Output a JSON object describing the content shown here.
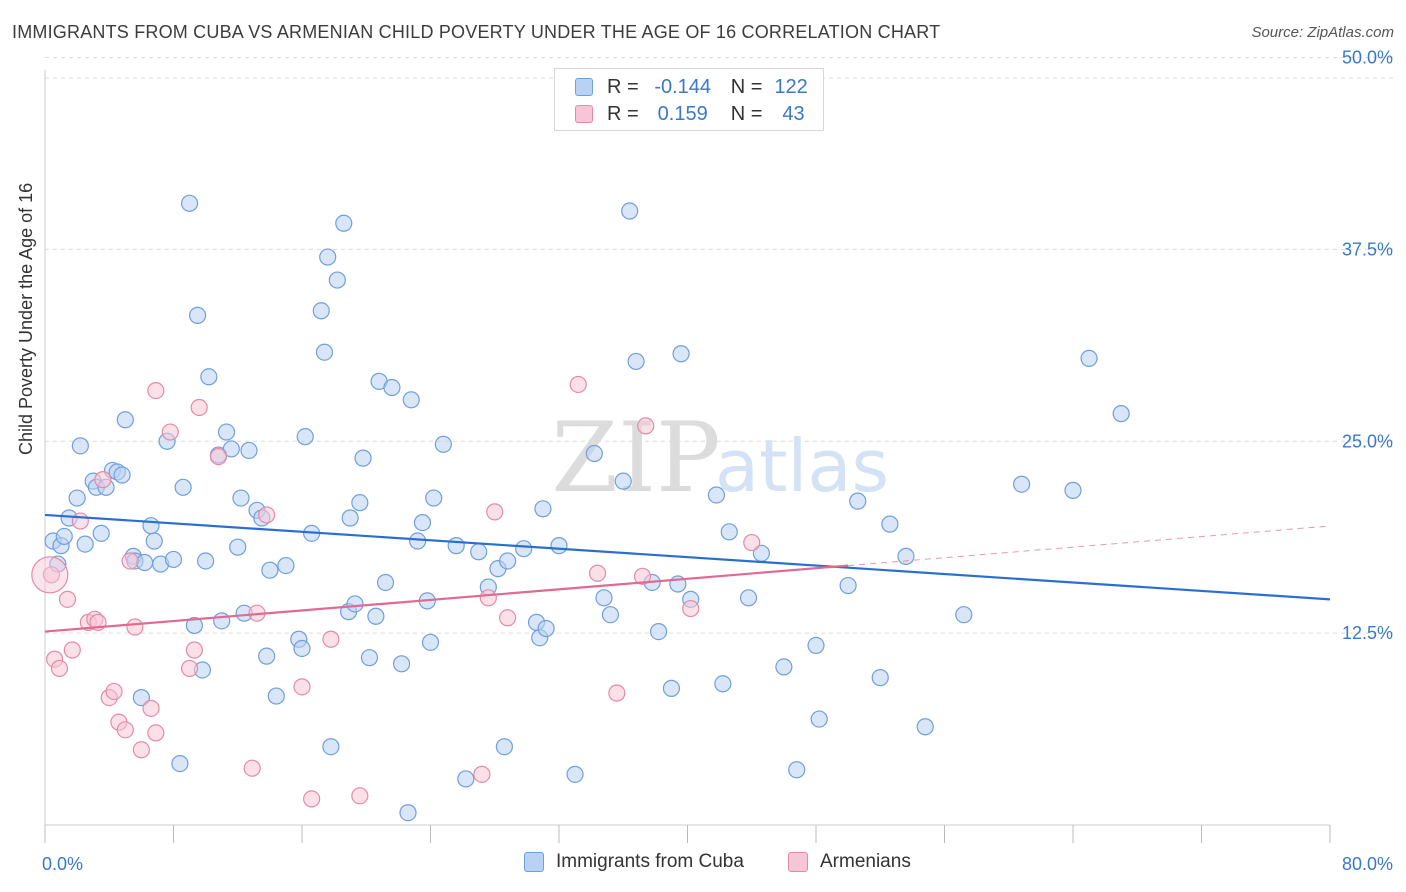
{
  "header": {
    "title": "IMMIGRANTS FROM CUBA VS ARMENIAN CHILD POVERTY UNDER THE AGE OF 16 CORRELATION CHART",
    "source": "Source: ZipAtlas.com"
  },
  "watermark": {
    "text_zip": "ZIP",
    "text_atlas": "atlas"
  },
  "colors": {
    "blue_fill": "#b9d2f3",
    "blue_stroke": "#6f9fdc",
    "blue_line": "#2a6fd0",
    "pink_fill": "#f7c6d6",
    "pink_stroke": "#e38aa9",
    "pink_line": "#e06a93",
    "tick_label": "#3a78c9",
    "grid": "#dcdcdc"
  },
  "legend_top": {
    "rows": [
      {
        "r_label": "R =",
        "r_value": "-0.144",
        "n_label": "N =",
        "n_value": "122"
      },
      {
        "r_label": "R =",
        "r_value": "0.159",
        "n_label": "N =",
        "n_value": "43"
      }
    ]
  },
  "legend_bottom": {
    "items": [
      "Immigrants from Cuba",
      "Armenians"
    ]
  },
  "chart_data": {
    "type": "scatter",
    "title": "IMMIGRANTS FROM CUBA VS ARMENIAN CHILD POVERTY UNDER THE AGE OF 16 CORRELATION CHART",
    "xlabel": "",
    "ylabel": "Child Poverty Under the Age of 16",
    "xlim": [
      0,
      80
    ],
    "ylim": [
      0,
      52
    ],
    "x_tick_labels": [
      "0.0%",
      "80.0%"
    ],
    "y_ticks": [
      12.5,
      25.0,
      37.5,
      50.0
    ],
    "y_tick_labels": [
      "12.5%",
      "25.0%",
      "37.5%",
      "50.0%"
    ],
    "grid": true,
    "legend_position": "top-center",
    "series": [
      {
        "name": "Immigrants from Cuba",
        "R": -0.144,
        "N": 122,
        "trend": {
          "x": [
            0,
            80
          ],
          "y": [
            20.2,
            14.7
          ]
        },
        "points": [
          [
            0.5,
            18.5
          ],
          [
            0.8,
            17.0
          ],
          [
            1.0,
            18.2
          ],
          [
            1.2,
            18.8
          ],
          [
            1.5,
            20.0
          ],
          [
            2.0,
            21.3
          ],
          [
            2.2,
            24.7
          ],
          [
            2.5,
            18.3
          ],
          [
            3.0,
            22.4
          ],
          [
            3.2,
            22.0
          ],
          [
            3.5,
            19.0
          ],
          [
            3.8,
            22.0
          ],
          [
            4.2,
            23.1
          ],
          [
            4.5,
            23.0
          ],
          [
            4.8,
            22.8
          ],
          [
            5.0,
            26.4
          ],
          [
            5.5,
            17.5
          ],
          [
            5.6,
            17.2
          ],
          [
            6.0,
            8.3
          ],
          [
            6.2,
            17.1
          ],
          [
            6.6,
            19.5
          ],
          [
            6.8,
            18.5
          ],
          [
            7.2,
            17.0
          ],
          [
            7.6,
            25.0
          ],
          [
            8.0,
            17.3
          ],
          [
            8.4,
            4.0
          ],
          [
            8.6,
            22.0
          ],
          [
            9.0,
            40.5
          ],
          [
            9.3,
            13.0
          ],
          [
            9.5,
            33.2
          ],
          [
            9.8,
            10.1
          ],
          [
            10.0,
            17.2
          ],
          [
            10.2,
            29.2
          ],
          [
            10.8,
            24.1
          ],
          [
            11.0,
            13.3
          ],
          [
            11.3,
            25.6
          ],
          [
            11.6,
            24.5
          ],
          [
            12.0,
            18.1
          ],
          [
            12.2,
            21.3
          ],
          [
            12.4,
            13.8
          ],
          [
            12.7,
            24.4
          ],
          [
            13.2,
            20.5
          ],
          [
            13.5,
            20.0
          ],
          [
            13.8,
            11.0
          ],
          [
            14.0,
            16.6
          ],
          [
            14.4,
            8.4
          ],
          [
            15.0,
            16.9
          ],
          [
            15.8,
            12.1
          ],
          [
            16.0,
            11.5
          ],
          [
            16.2,
            25.3
          ],
          [
            16.6,
            19.0
          ],
          [
            17.2,
            33.5
          ],
          [
            17.4,
            30.8
          ],
          [
            17.6,
            37.0
          ],
          [
            17.8,
            5.1
          ],
          [
            18.2,
            35.5
          ],
          [
            18.6,
            39.2
          ],
          [
            18.9,
            13.9
          ],
          [
            19.0,
            20.0
          ],
          [
            19.3,
            14.4
          ],
          [
            19.6,
            21.0
          ],
          [
            19.8,
            23.9
          ],
          [
            20.2,
            10.9
          ],
          [
            20.6,
            13.6
          ],
          [
            20.8,
            28.9
          ],
          [
            21.2,
            15.8
          ],
          [
            21.6,
            28.5
          ],
          [
            22.2,
            10.5
          ],
          [
            22.6,
            0.8
          ],
          [
            22.8,
            27.7
          ],
          [
            23.2,
            18.5
          ],
          [
            23.5,
            19.7
          ],
          [
            23.8,
            14.6
          ],
          [
            24.0,
            11.9
          ],
          [
            24.2,
            21.3
          ],
          [
            24.8,
            24.8
          ],
          [
            25.6,
            18.2
          ],
          [
            26.2,
            3.0
          ],
          [
            27.0,
            17.8
          ],
          [
            27.6,
            15.5
          ],
          [
            28.2,
            16.7
          ],
          [
            28.6,
            5.1
          ],
          [
            28.8,
            17.2
          ],
          [
            29.8,
            18.0
          ],
          [
            30.6,
            13.2
          ],
          [
            30.8,
            12.2
          ],
          [
            31.0,
            20.6
          ],
          [
            31.2,
            12.8
          ],
          [
            32.0,
            18.2
          ],
          [
            33.0,
            3.3
          ],
          [
            34.2,
            24.2
          ],
          [
            34.8,
            14.8
          ],
          [
            35.2,
            13.7
          ],
          [
            36.0,
            22.4
          ],
          [
            36.4,
            40.0
          ],
          [
            36.8,
            30.2
          ],
          [
            37.8,
            15.8
          ],
          [
            38.2,
            12.6
          ],
          [
            39.0,
            8.9
          ],
          [
            39.4,
            15.7
          ],
          [
            39.6,
            30.7
          ],
          [
            40.2,
            14.7
          ],
          [
            41.8,
            21.5
          ],
          [
            42.2,
            9.2
          ],
          [
            42.6,
            19.1
          ],
          [
            43.8,
            14.8
          ],
          [
            44.6,
            17.7
          ],
          [
            46.0,
            10.3
          ],
          [
            46.8,
            3.6
          ],
          [
            48.0,
            11.7
          ],
          [
            48.2,
            6.9
          ],
          [
            50.0,
            15.6
          ],
          [
            50.6,
            21.1
          ],
          [
            52.0,
            9.6
          ],
          [
            52.6,
            19.6
          ],
          [
            53.6,
            17.5
          ],
          [
            54.8,
            6.4
          ],
          [
            57.2,
            13.7
          ],
          [
            60.8,
            22.2
          ],
          [
            64.0,
            21.8
          ],
          [
            65.0,
            30.4
          ],
          [
            67.0,
            26.8
          ]
        ]
      },
      {
        "name": "Armenians",
        "R": 0.159,
        "N": 43,
        "trend": {
          "x": [
            0,
            50
          ],
          "y": [
            12.6,
            16.9
          ]
        },
        "points": [
          [
            0.4,
            16.3
          ],
          [
            0.6,
            10.8
          ],
          [
            0.9,
            10.2
          ],
          [
            1.4,
            14.7
          ],
          [
            1.7,
            11.4
          ],
          [
            2.2,
            19.8
          ],
          [
            2.7,
            13.2
          ],
          [
            3.1,
            13.4
          ],
          [
            3.3,
            13.2
          ],
          [
            3.6,
            22.5
          ],
          [
            4.0,
            8.3
          ],
          [
            4.3,
            8.7
          ],
          [
            4.6,
            6.7
          ],
          [
            5.0,
            6.2
          ],
          [
            5.3,
            17.2
          ],
          [
            5.6,
            12.9
          ],
          [
            6.0,
            4.9
          ],
          [
            6.6,
            7.6
          ],
          [
            6.9,
            6.0
          ],
          [
            6.9,
            28.3
          ],
          [
            7.8,
            25.6
          ],
          [
            9.0,
            10.2
          ],
          [
            9.3,
            11.4
          ],
          [
            9.6,
            27.2
          ],
          [
            10.8,
            24.0
          ],
          [
            12.9,
            3.7
          ],
          [
            13.2,
            13.8
          ],
          [
            13.8,
            20.2
          ],
          [
            16.0,
            9.0
          ],
          [
            16.6,
            1.7
          ],
          [
            17.8,
            12.1
          ],
          [
            19.6,
            1.9
          ],
          [
            27.2,
            3.3
          ],
          [
            27.6,
            14.8
          ],
          [
            28.0,
            20.4
          ],
          [
            28.8,
            13.5
          ],
          [
            33.2,
            28.7
          ],
          [
            34.4,
            16.4
          ],
          [
            35.6,
            8.6
          ],
          [
            37.2,
            16.2
          ],
          [
            37.4,
            26.0
          ],
          [
            40.2,
            14.1
          ],
          [
            44.0,
            18.4
          ]
        ]
      }
    ]
  },
  "axis": {
    "ylabel": "Child Poverty Under the Age of 16",
    "x_min_label": "0.0%",
    "x_max_label": "80.0%"
  }
}
